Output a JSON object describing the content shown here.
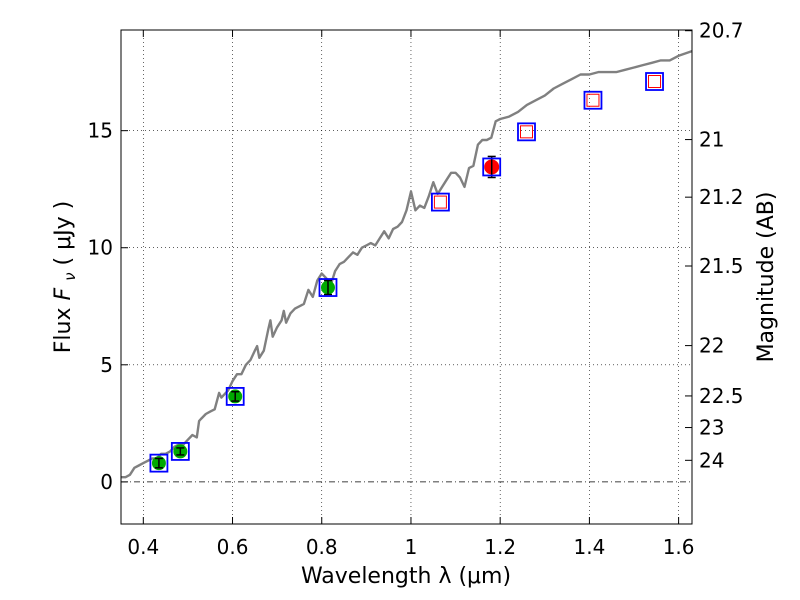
{
  "chart_data": {
    "type": "scatter",
    "xlabel": "Wavelength  λ (μm)",
    "ylabel_prefix": "Flux ",
    "ylabel_symbol_main": "F",
    "ylabel_symbol_sub": "ν",
    "ylabel_suffix": "  ( μJy )",
    "right_ylabel": "Magnitude (AB)",
    "xlim": [
      0.35,
      1.63
    ],
    "ylim": [
      -1.8,
      19.3
    ],
    "grid": true,
    "x_ticks": [
      {
        "value": 0.4,
        "label": "0.4"
      },
      {
        "value": 0.6,
        "label": "0.6"
      },
      {
        "value": 0.8,
        "label": "0.8"
      },
      {
        "value": 1.0,
        "label": "1"
      },
      {
        "value": 1.2,
        "label": "1.2"
      },
      {
        "value": 1.4,
        "label": "1.4"
      },
      {
        "value": 1.6,
        "label": "1.6"
      }
    ],
    "y_ticks": [
      {
        "value": 0,
        "label": "0"
      },
      {
        "value": 5,
        "label": "5"
      },
      {
        "value": 10,
        "label": "10"
      },
      {
        "value": 15,
        "label": "15"
      }
    ],
    "right_ticks": [
      {
        "label": "20.7",
        "flux": 19.27
      },
      {
        "label": "21",
        "flux": 14.62
      },
      {
        "label": "21.2",
        "flux": 12.16
      },
      {
        "label": "21.5",
        "flux": 9.22
      },
      {
        "label": "22",
        "flux": 5.82
      },
      {
        "label": "22.5",
        "flux": 3.67
      },
      {
        "label": "23",
        "flux": 2.32
      },
      {
        "label": "24",
        "flux": 0.92
      }
    ],
    "model_sed": {
      "name": "SED model",
      "color": "#808080",
      "x": [
        0.35,
        0.36,
        0.37,
        0.38,
        0.39,
        0.4,
        0.41,
        0.42,
        0.43,
        0.44,
        0.45,
        0.46,
        0.47,
        0.48,
        0.49,
        0.5,
        0.51,
        0.52,
        0.525,
        0.53,
        0.54,
        0.55,
        0.56,
        0.57,
        0.575,
        0.58,
        0.59,
        0.6,
        0.61,
        0.62,
        0.63,
        0.64,
        0.65,
        0.655,
        0.66,
        0.67,
        0.68,
        0.685,
        0.69,
        0.7,
        0.71,
        0.715,
        0.72,
        0.73,
        0.74,
        0.75,
        0.76,
        0.77,
        0.78,
        0.79,
        0.8,
        0.81,
        0.82,
        0.83,
        0.84,
        0.85,
        0.86,
        0.87,
        0.88,
        0.89,
        0.9,
        0.91,
        0.92,
        0.93,
        0.94,
        0.95,
        0.96,
        0.97,
        0.98,
        0.99,
        1.0,
        1.01,
        1.02,
        1.03,
        1.04,
        1.05,
        1.06,
        1.08,
        1.09,
        1.1,
        1.11,
        1.12,
        1.13,
        1.14,
        1.15,
        1.16,
        1.17,
        1.18,
        1.19,
        1.2,
        1.22,
        1.24,
        1.26,
        1.28,
        1.3,
        1.32,
        1.34,
        1.36,
        1.38,
        1.4,
        1.42,
        1.44,
        1.46,
        1.48,
        1.5,
        1.52,
        1.54,
        1.56,
        1.58,
        1.6,
        1.63
      ],
      "y": [
        0.2,
        0.2,
        0.3,
        0.6,
        0.7,
        0.8,
        0.9,
        1.0,
        1.0,
        1.2,
        1.2,
        1.3,
        1.5,
        1.6,
        1.6,
        1.8,
        2.0,
        1.9,
        2.6,
        2.7,
        2.9,
        3.0,
        3.1,
        3.8,
        3.6,
        3.7,
        3.9,
        4.3,
        4.6,
        4.6,
        5.0,
        5.2,
        5.6,
        5.8,
        5.3,
        5.6,
        6.5,
        6.9,
        6.2,
        6.6,
        6.9,
        7.3,
        6.8,
        7.2,
        7.4,
        7.5,
        7.6,
        8.2,
        7.9,
        8.6,
        8.9,
        8.7,
        8.4,
        9.0,
        9.3,
        9.4,
        9.6,
        9.8,
        9.7,
        10.0,
        10.1,
        10.2,
        10.1,
        10.4,
        10.7,
        10.4,
        10.8,
        10.9,
        11.1,
        11.6,
        12.4,
        11.6,
        11.8,
        11.7,
        12.2,
        12.8,
        12.3,
        12.9,
        13.2,
        13.2,
        13.0,
        12.6,
        13.4,
        13.5,
        14.4,
        14.6,
        14.6,
        14.7,
        15.4,
        15.5,
        15.6,
        15.8,
        16.1,
        16.3,
        16.5,
        16.8,
        17.0,
        17.2,
        17.4,
        17.4,
        17.5,
        17.5,
        17.5,
        17.6,
        17.7,
        17.8,
        17.9,
        18.0,
        18.0,
        18.2,
        18.4
      ]
    },
    "series": [
      {
        "name": "observed (green)",
        "color": "#00aa00",
        "points": [
          {
            "x": 0.435,
            "y": 0.8,
            "err": 0.2
          },
          {
            "x": 0.483,
            "y": 1.3,
            "err": 0.15
          },
          {
            "x": 0.606,
            "y": 3.65,
            "err": 0.2
          },
          {
            "x": 0.814,
            "y": 8.3,
            "err": 0.3
          }
        ]
      },
      {
        "name": "observed (red)",
        "color": "#ff0000",
        "points": [
          {
            "x": 1.181,
            "y": 13.45,
            "err": 0.45
          }
        ]
      },
      {
        "name": "model photometry (red open)",
        "color": "#ff0000",
        "points": [
          {
            "x": 1.066,
            "y": 11.95
          },
          {
            "x": 1.259,
            "y": 14.95
          },
          {
            "x": 1.408,
            "y": 16.3
          },
          {
            "x": 1.546,
            "y": 17.1
          }
        ]
      },
      {
        "name": "model photometry (blue open)",
        "color": "#0000ff",
        "points": [
          {
            "x": 0.435,
            "y": 0.8
          },
          {
            "x": 0.483,
            "y": 1.3
          },
          {
            "x": 0.606,
            "y": 3.65
          },
          {
            "x": 0.814,
            "y": 8.3
          },
          {
            "x": 1.066,
            "y": 11.95
          },
          {
            "x": 1.181,
            "y": 13.45
          },
          {
            "x": 1.259,
            "y": 14.95
          },
          {
            "x": 1.408,
            "y": 16.3
          },
          {
            "x": 1.546,
            "y": 17.1
          }
        ]
      }
    ],
    "zero_line": {
      "y": 0
    }
  }
}
